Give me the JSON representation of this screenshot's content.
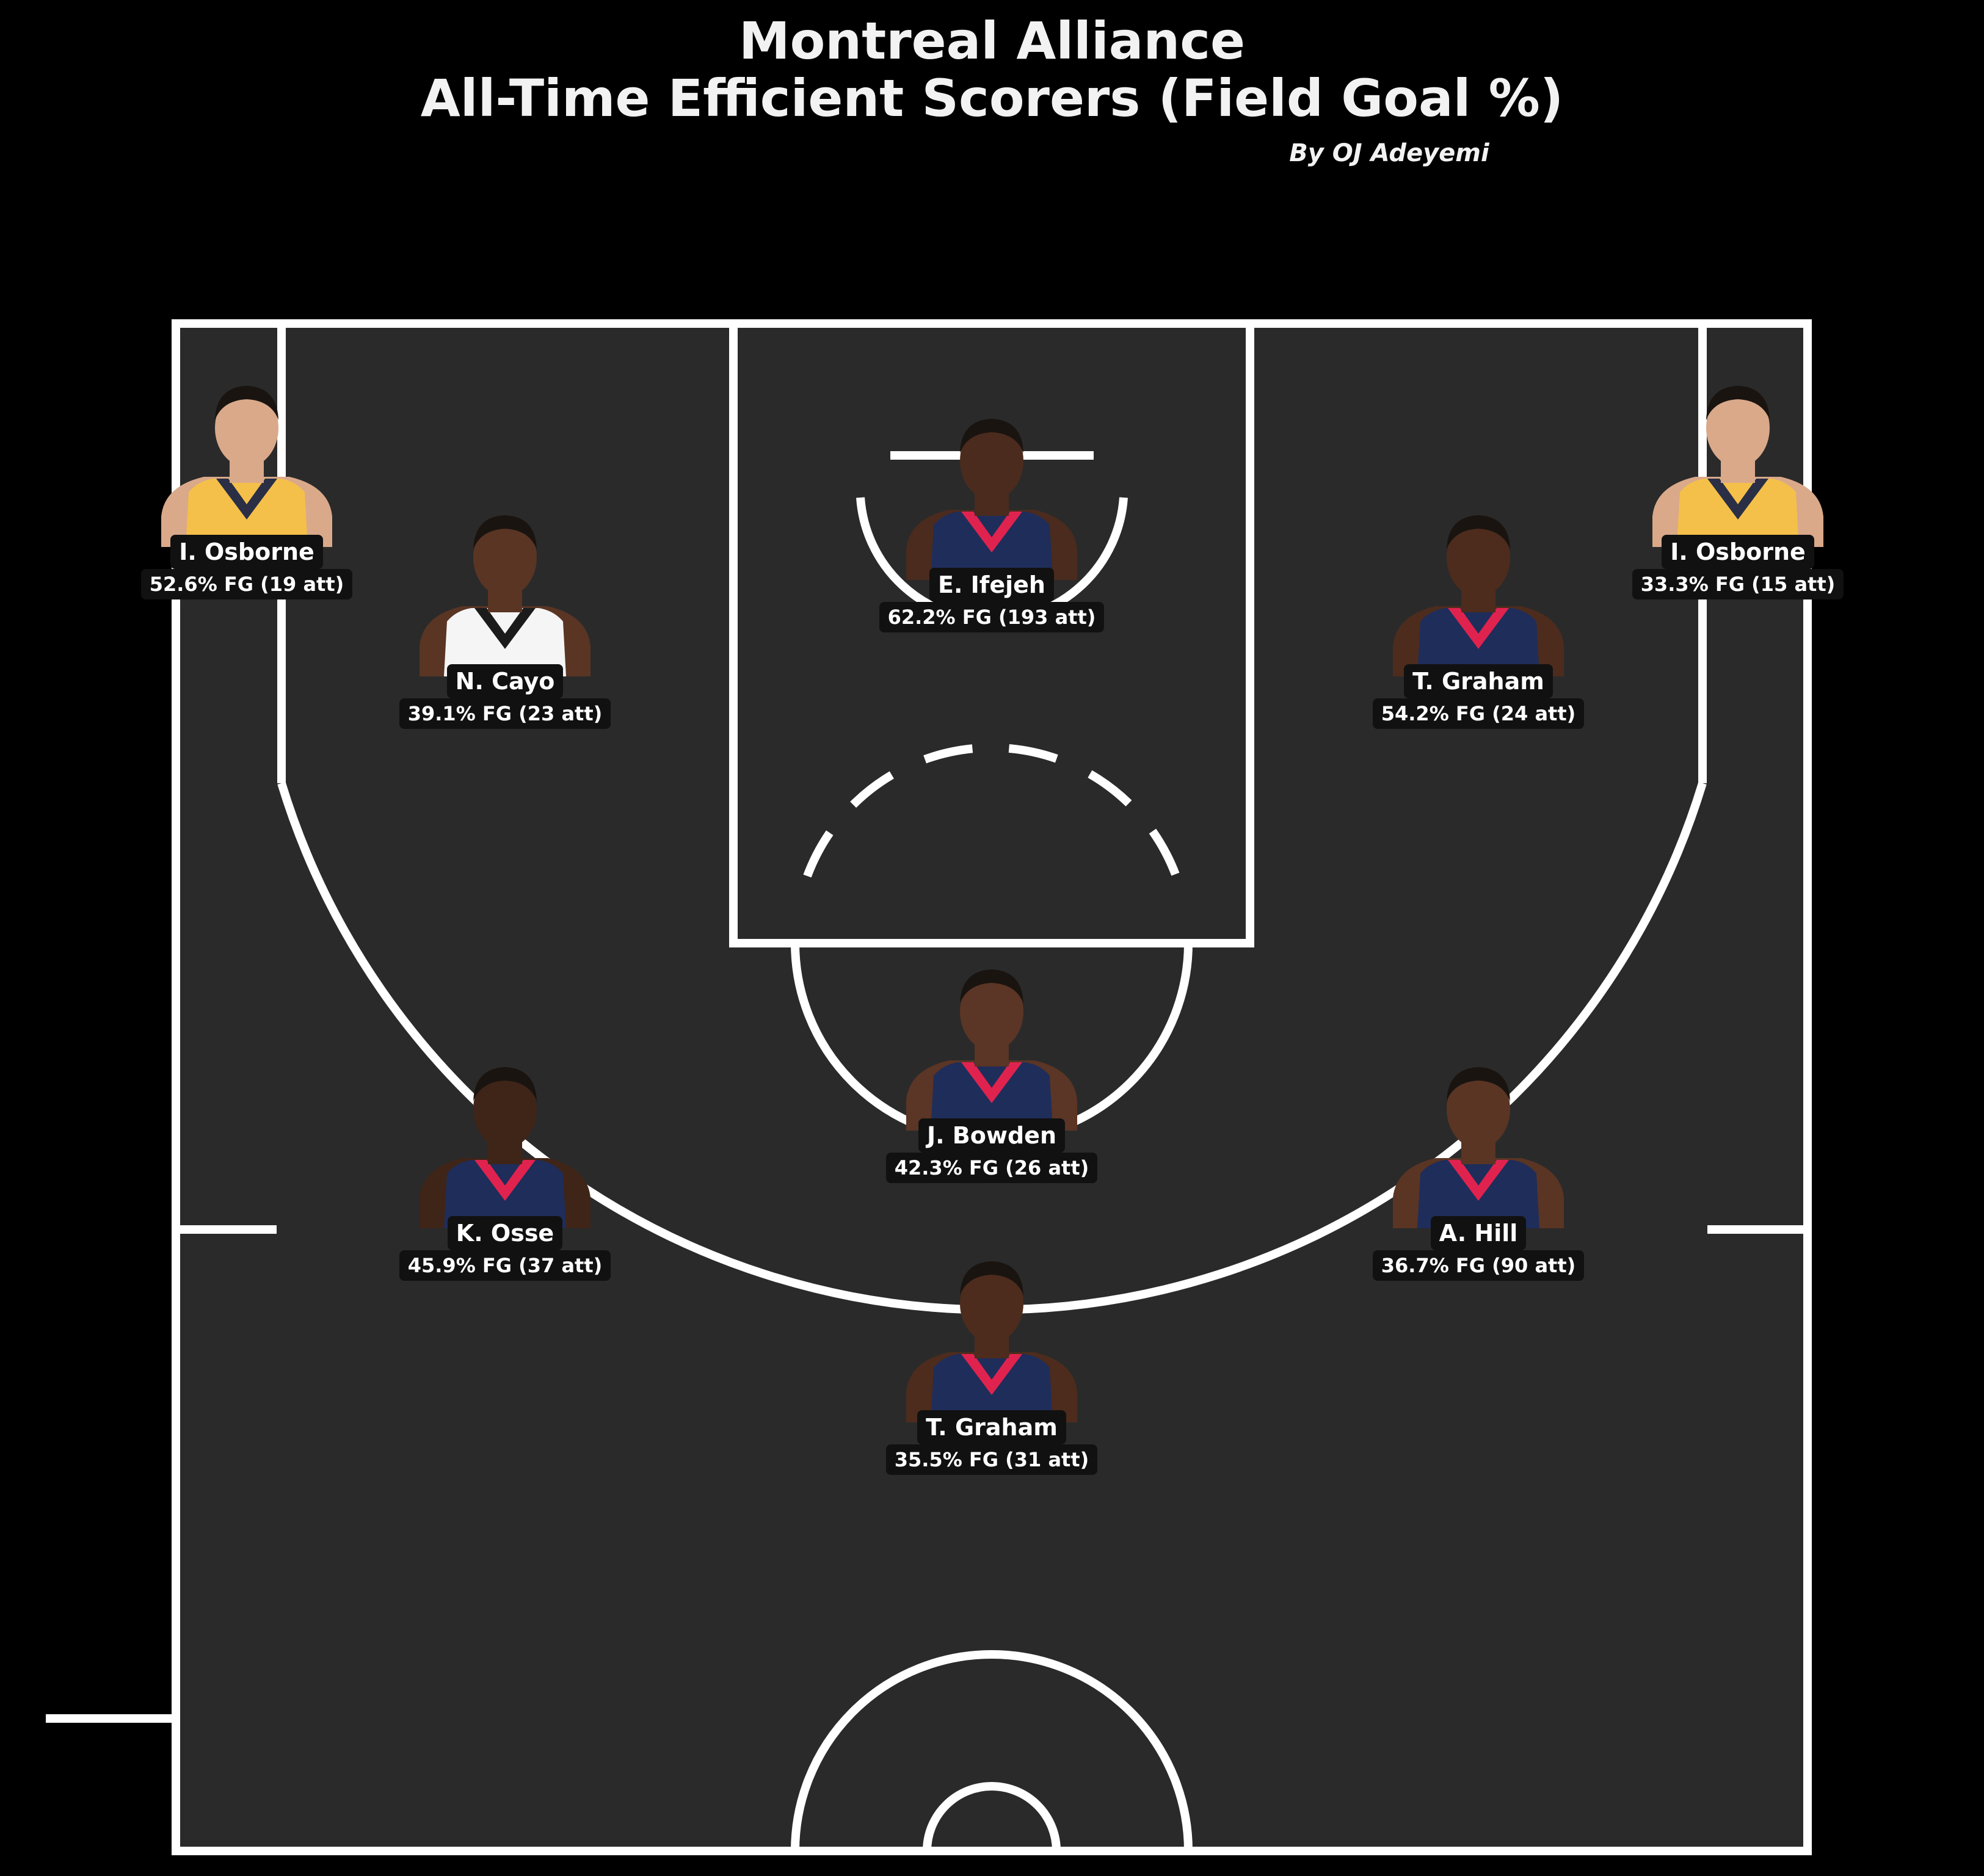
{
  "header": {
    "team": "Montreal Alliance",
    "subtitle": "All-Time Efficient Scorers (Field Goal %)",
    "byline": "By OJ Adeyemi"
  },
  "colors": {
    "background": "#000000",
    "court": "#2a2a2a",
    "lines": "#ffffff",
    "jersey_navy": "#1f2d5a",
    "jersey_red": "#e0234e",
    "jersey_yellow": "#f4c04a",
    "jersey_white": "#f5f5f5"
  },
  "players": [
    {
      "id": "osborne-left",
      "name": "I. Osborne",
      "stat": "52.6% FG (19 att)",
      "fg_pct": 52.6,
      "attempts": 19,
      "jersey": "#f4c04a",
      "trim": "#2a2f45",
      "skin": "#d9a98a"
    },
    {
      "id": "cayo",
      "name": "N. Cayo",
      "stat": "39.1% FG (23 att)",
      "fg_pct": 39.1,
      "attempts": 23,
      "jersey": "#f5f5f5",
      "trim": "#1b1b1b",
      "skin": "#5a3524"
    },
    {
      "id": "ifejeh",
      "name": "E. Ifejeh",
      "stat": "62.2% FG (193 att)",
      "fg_pct": 62.2,
      "attempts": 193,
      "jersey": "#1f2d5a",
      "trim": "#e0234e",
      "skin": "#4a2b1e"
    },
    {
      "id": "graham-right",
      "name": "T. Graham",
      "stat": "54.2% FG (24 att)",
      "fg_pct": 54.2,
      "attempts": 24,
      "jersey": "#1f2d5a",
      "trim": "#e0234e",
      "skin": "#4d2c1d"
    },
    {
      "id": "osborne-right",
      "name": "I. Osborne",
      "stat": "33.3% FG (15 att)",
      "fg_pct": 33.3,
      "attempts": 15,
      "jersey": "#f4c04a",
      "trim": "#2a2f45",
      "skin": "#d9a98a"
    },
    {
      "id": "bowden",
      "name": "J. Bowden",
      "stat": "42.3% FG (26 att)",
      "fg_pct": 42.3,
      "attempts": 26,
      "jersey": "#1f2d5a",
      "trim": "#e0234e",
      "skin": "#5b3525"
    },
    {
      "id": "osse",
      "name": "K. Osse",
      "stat": "45.9% FG (37 att)",
      "fg_pct": 45.9,
      "attempts": 37,
      "jersey": "#1f2d5a",
      "trim": "#e0234e",
      "skin": "#3f2418"
    },
    {
      "id": "hill",
      "name": "A. Hill",
      "stat": "36.7% FG (90 att)",
      "fg_pct": 36.7,
      "attempts": 90,
      "jersey": "#1f2d5a",
      "trim": "#e0234e",
      "skin": "#5a3524"
    },
    {
      "id": "graham-bottom",
      "name": "T. Graham",
      "stat": "35.5% FG (31 att)",
      "fg_pct": 35.5,
      "attempts": 31,
      "jersey": "#1f2d5a",
      "trim": "#e0234e",
      "skin": "#4d2c1d"
    }
  ]
}
